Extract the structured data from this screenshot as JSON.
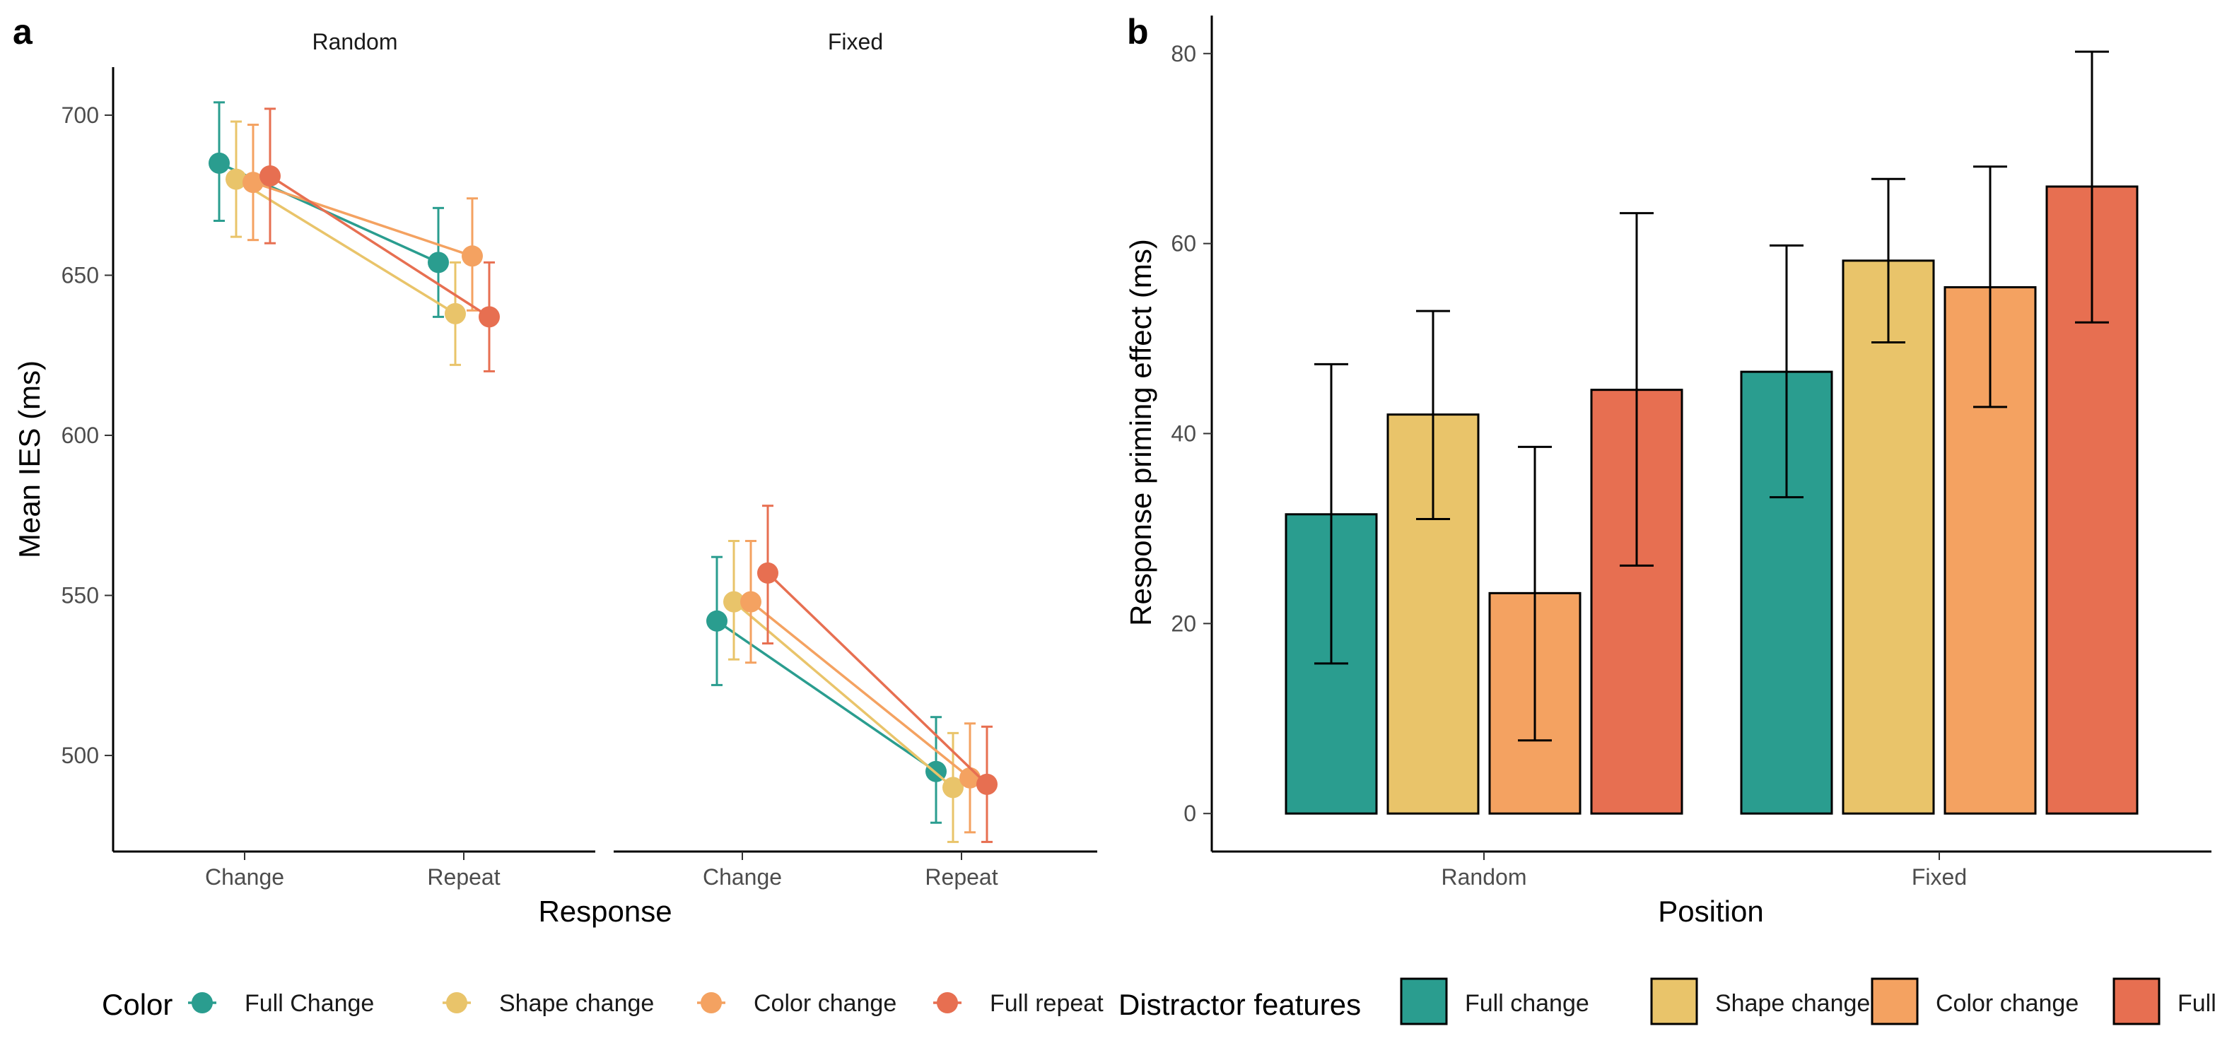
{
  "chart_data": [
    {
      "panel": "a",
      "type": "line",
      "facets": [
        "Random",
        "Fixed"
      ],
      "categories": [
        "Change",
        "Repeat"
      ],
      "xlabel": "Response",
      "ylabel": "Mean IES (ms)",
      "ylim": [
        470,
        715
      ],
      "yticks": [
        500,
        550,
        600,
        650,
        700
      ],
      "legend": {
        "title": "Color",
        "position": "bottom"
      },
      "series": [
        {
          "name": "Full Change",
          "color": "#2a9d8f",
          "Random": {
            "values": [
              685,
              654
            ],
            "err_low": [
              667,
              637
            ],
            "err_high": [
              704,
              671
            ]
          },
          "Fixed": {
            "values": [
              542,
              495
            ],
            "err_low": [
              522,
              479
            ],
            "err_high": [
              562,
              512
            ]
          }
        },
        {
          "name": "Shape change",
          "color": "#e9c46a",
          "Random": {
            "values": [
              680,
              638
            ],
            "err_low": [
              662,
              622
            ],
            "err_high": [
              698,
              654
            ]
          },
          "Fixed": {
            "values": [
              548,
              490
            ],
            "err_low": [
              530,
              473
            ],
            "err_high": [
              567,
              507
            ]
          }
        },
        {
          "name": "Color change",
          "color": "#f4a261",
          "Random": {
            "values": [
              679,
              656
            ],
            "err_low": [
              661,
              639
            ],
            "err_high": [
              697,
              674
            ]
          },
          "Fixed": {
            "values": [
              548,
              493
            ],
            "err_low": [
              529,
              476
            ],
            "err_high": [
              567,
              510
            ]
          }
        },
        {
          "name": "Full repeat",
          "color": "#e76f51",
          "Random": {
            "values": [
              681,
              637
            ],
            "err_low": [
              660,
              620
            ],
            "err_high": [
              702,
              654
            ]
          },
          "Fixed": {
            "values": [
              557,
              491
            ],
            "err_low": [
              535,
              473
            ],
            "err_high": [
              578,
              509
            ]
          }
        }
      ]
    },
    {
      "panel": "b",
      "type": "bar",
      "categories": [
        "Random",
        "Fixed"
      ],
      "xlabel": "Position",
      "ylabel": "Response priming effect (ms)",
      "ylim": [
        -4,
        84
      ],
      "yticks": [
        0,
        20,
        40,
        60,
        80
      ],
      "legend": {
        "title": "Distractor features",
        "position": "bottom"
      },
      "series": [
        {
          "name": "Full change",
          "color": "#2a9d8f",
          "values": [
            31.5,
            46.5
          ],
          "err_low": [
            15.8,
            33.3
          ],
          "err_high": [
            47.3,
            59.8
          ]
        },
        {
          "name": "Shape change",
          "color": "#e9c46a",
          "values": [
            42.0,
            58.2
          ],
          "err_low": [
            31.0,
            49.6
          ],
          "err_high": [
            52.9,
            66.8
          ]
        },
        {
          "name": "Color change",
          "color": "#f4a261",
          "values": [
            23.2,
            55.4
          ],
          "err_low": [
            7.7,
            42.8
          ],
          "err_high": [
            38.6,
            68.1
          ]
        },
        {
          "name": "Full",
          "color": "#e76f51",
          "values": [
            44.6,
            66.0
          ],
          "err_low": [
            26.1,
            51.7
          ],
          "err_high": [
            63.2,
            80.2
          ]
        }
      ]
    }
  ]
}
